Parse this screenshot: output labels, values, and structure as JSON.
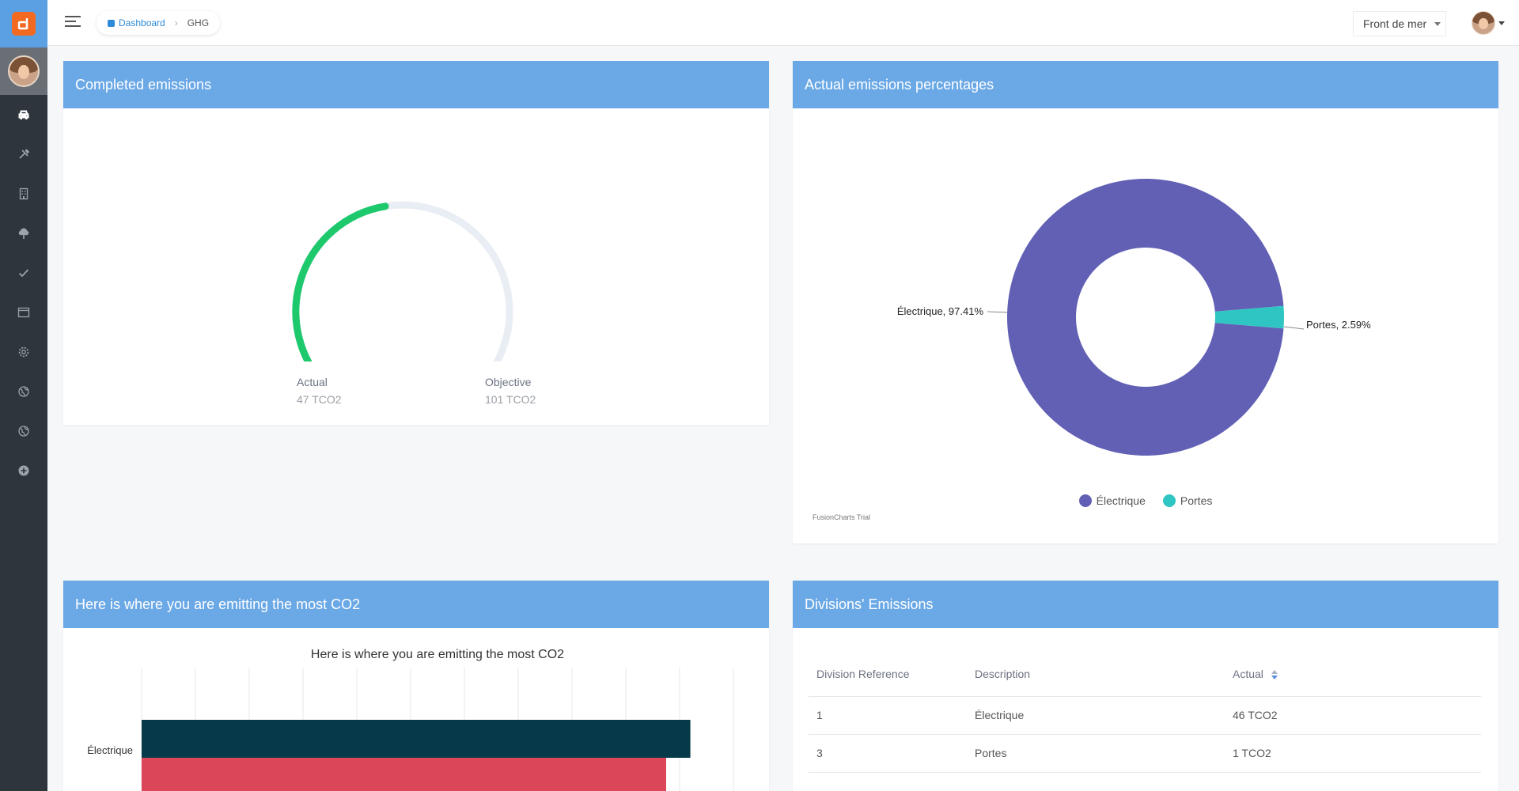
{
  "sidebar": {
    "logo_letter": "d",
    "items": [
      {
        "icon": "car-icon",
        "active": true
      },
      {
        "icon": "tools-icon"
      },
      {
        "icon": "building-icon"
      },
      {
        "icon": "tree-icon"
      },
      {
        "icon": "check-icon"
      },
      {
        "icon": "window-icon"
      },
      {
        "icon": "gear-icon"
      },
      {
        "icon": "globe-icon"
      },
      {
        "icon": "globe-icon"
      },
      {
        "icon": "plus-circle-icon"
      }
    ]
  },
  "topbar": {
    "breadcrumb": {
      "home": "Dashboard",
      "current": "GHG"
    },
    "site_select": "Front de mer"
  },
  "panels": {
    "completed": {
      "title": "Completed emissions",
      "actual_label": "Actual",
      "actual_value": "47 TCO2",
      "objective_label": "Objective",
      "objective_value": "101 TCO2",
      "progress": 0.4653
    },
    "percentages": {
      "title": "Actual emissions percentages",
      "trial_text": "FusionCharts Trial"
    },
    "most_co2": {
      "title": "Here is where you are emitting the most CO2"
    },
    "divisions": {
      "title": "Divisions' Emissions",
      "columns": [
        "Division Reference",
        "Description",
        "Actual"
      ],
      "rows": [
        [
          "1",
          "Électrique",
          "46 TCO2"
        ],
        [
          "3",
          "Portes",
          "1 TCO2"
        ]
      ]
    }
  },
  "colors": {
    "header": "#6aa8e6",
    "gauge_fill": "#1ec96e",
    "gauge_track": "#e9edf4",
    "electrique": "#6260b5",
    "portes": "#2fc5c2",
    "bar_dark": "#063a4a",
    "bar_red": "#db4658"
  },
  "chart_data": [
    {
      "type": "pie",
      "labels": [
        "Électrique, 97.41%",
        "Portes, 2.59%"
      ],
      "series": [
        {
          "name": "Électrique",
          "value": 97.41
        },
        {
          "name": "Portes",
          "value": 2.59
        }
      ],
      "legend": [
        "Électrique",
        "Portes"
      ],
      "legend_position": "bottom"
    },
    {
      "type": "bar",
      "title": "Here is where you are emitting the most CO2",
      "categories": [
        "Électrique"
      ],
      "series": [
        {
          "values": [
            102
          ]
        },
        {
          "values": [
            97.5
          ]
        }
      ],
      "xlim": [
        0,
        110
      ],
      "grid": true
    }
  ]
}
